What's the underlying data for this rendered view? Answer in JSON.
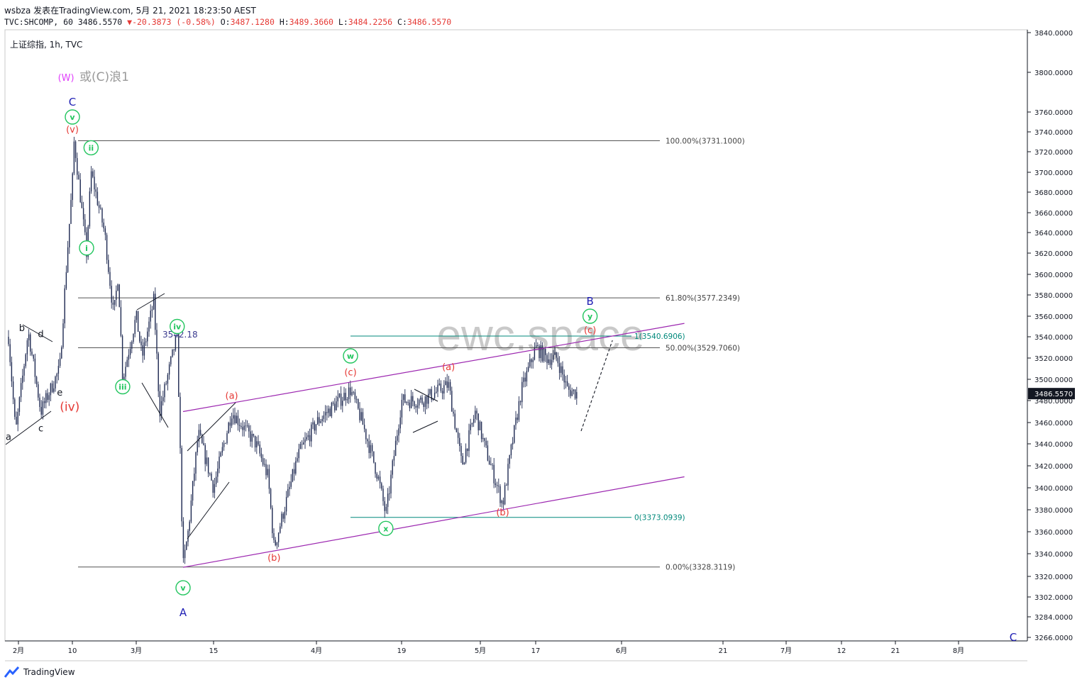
{
  "header": {
    "user_line": "wsbza 发表在TradingView.com, 5月 21, 2021 18:23:50 AEST",
    "symbol": "TVC:SHCOMP, 60",
    "last": "3486.5570",
    "change": "-20.3873 (-0.58%)",
    "o_label": "O:",
    "o_value": "3487.1280",
    "h_label": "H:",
    "h_value": "3489.3660",
    "l_label": "L:",
    "l_value": "3484.2256",
    "c_label": "C:",
    "c_value": "3486.5570"
  },
  "footer": {
    "brand": "TradingView"
  },
  "colors": {
    "candle": "#1f2a52",
    "fib": "#555555",
    "channel": "#9c27b0",
    "teal": "#00897b",
    "green": "#22c55e",
    "red": "#e53935",
    "blue": "#1e1eb4",
    "magenta": "#e040fb",
    "watermark": "#c9c9c9",
    "price_tag": "#131722"
  },
  "chart_data": {
    "type": "candlestick",
    "title": "上证综指, 1h, TVC",
    "watermark": "ewc.space",
    "y_ticks": [
      "3840.0000",
      "3800.0000",
      "3760.0000",
      "3740.0000",
      "3720.0000",
      "3700.0000",
      "3680.0000",
      "3660.0000",
      "3640.0000",
      "3620.0000",
      "3600.0000",
      "3580.0000",
      "3560.0000",
      "3540.0000",
      "3520.0000",
      "3500.0000",
      "3480.0000",
      "3460.0000",
      "3440.0000",
      "3420.0000",
      "3400.0000",
      "3380.0000",
      "3360.0000",
      "3340.0000",
      "3320.0000",
      "3302.0000",
      "3284.0000",
      "3266.0000"
    ],
    "y_tick_values": [
      3840,
      3800,
      3760,
      3740,
      3720,
      3700,
      3680,
      3660,
      3640,
      3620,
      3600,
      3580,
      3560,
      3540,
      3520,
      3500,
      3480,
      3460,
      3440,
      3420,
      3400,
      3380,
      3360,
      3340,
      3320,
      3302,
      3284,
      3266
    ],
    "x_ticks": [
      "2月",
      "10",
      "3月",
      "15",
      "4月",
      "19",
      "5月",
      "17",
      "6月",
      "21",
      "7月",
      "12",
      "21",
      "8月"
    ],
    "current_price": "3486.5570",
    "current_price_value": 3486.557,
    "price_label": "3542.18",
    "price_label_value": 3542.18,
    "swing_path": [
      {
        "date": "2021-01-29",
        "v": 3540
      },
      {
        "date": "2021-02-01",
        "v": 3450
      },
      {
        "date": "2021-02-03",
        "v": 3545
      },
      {
        "date": "2021-02-05",
        "v": 3470
      },
      {
        "date": "2021-02-08",
        "v": 3510
      },
      {
        "date": "2021-02-09",
        "v": 3603
      },
      {
        "date": "2021-02-10",
        "v": 3690
      },
      {
        "date": "2021-02-11",
        "v": 3731
      },
      {
        "date": "2021-02-18",
        "v": 3620
      },
      {
        "date": "2021-02-19",
        "v": 3700
      },
      {
        "date": "2021-02-22",
        "v": 3640
      },
      {
        "date": "2021-02-24",
        "v": 3560
      },
      {
        "date": "2021-02-25",
        "v": 3600
      },
      {
        "date": "2021-02-26",
        "v": 3500
      },
      {
        "date": "2021-03-01",
        "v": 3560
      },
      {
        "date": "2021-03-02",
        "v": 3520
      },
      {
        "date": "2021-03-04",
        "v": 3575
      },
      {
        "date": "2021-03-05",
        "v": 3470
      },
      {
        "date": "2021-03-08",
        "v": 3542
      },
      {
        "date": "2021-03-09",
        "v": 3328
      },
      {
        "date": "2021-03-10",
        "v": 3360
      },
      {
        "date": "2021-03-12",
        "v": 3450
      },
      {
        "date": "2021-03-15",
        "v": 3400
      },
      {
        "date": "2021-03-18",
        "v": 3470
      },
      {
        "date": "2021-03-22",
        "v": 3440
      },
      {
        "date": "2021-03-24",
        "v": 3410
      },
      {
        "date": "2021-03-25",
        "v": 3345
      },
      {
        "date": "2021-03-29",
        "v": 3430
      },
      {
        "date": "2021-04-01",
        "v": 3460
      },
      {
        "date": "2021-04-06",
        "v": 3490
      },
      {
        "date": "2021-04-09",
        "v": 3460
      },
      {
        "date": "2021-04-13",
        "v": 3410
      },
      {
        "date": "2021-04-15",
        "v": 3375
      },
      {
        "date": "2021-04-19",
        "v": 3480
      },
      {
        "date": "2021-04-22",
        "v": 3480
      },
      {
        "date": "2021-04-26",
        "v": 3495
      },
      {
        "date": "2021-04-28",
        "v": 3420
      },
      {
        "date": "2021-04-30",
        "v": 3470
      },
      {
        "date": "2021-05-06",
        "v": 3440
      },
      {
        "date": "2021-05-10",
        "v": 3385
      },
      {
        "date": "2021-05-12",
        "v": 3440
      },
      {
        "date": "2021-05-14",
        "v": 3490
      },
      {
        "date": "2021-05-17",
        "v": 3530
      },
      {
        "date": "2021-05-18",
        "v": 3520
      },
      {
        "date": "2021-05-19",
        "v": 3520
      },
      {
        "date": "2021-05-20",
        "v": 3490
      },
      {
        "date": "2021-05-21",
        "v": 3486.557
      }
    ],
    "fib_levels": [
      {
        "label": "100.00%(3731.1000)",
        "value": 3731.1
      },
      {
        "label": "61.80%(3577.2349)",
        "value": 3577.2349
      },
      {
        "label": "50.00%(3529.7060)",
        "value": 3529.706
      },
      {
        "label": "0.00%(3328.3119)",
        "value": 3328.3119
      }
    ],
    "fib_ext_levels": [
      {
        "label": "1(3540.6906)",
        "value": 3540.6906
      },
      {
        "label": "0(3373.0939)",
        "value": 3373.0939
      }
    ],
    "channel": {
      "upper": [
        {
          "date": "2021-03-09",
          "v": 3470
        },
        {
          "date": "2021-06-05",
          "v": 3553
        }
      ],
      "lower": [
        {
          "date": "2021-03-09",
          "v": 3328
        },
        {
          "date": "2021-06-05",
          "v": 3410
        }
      ]
    },
    "projection": {
      "from": {
        "date": "2021-05-21",
        "v": 3490
      },
      "to": {
        "date": "2021-05-25",
        "v": 3538
      }
    },
    "wave_labels": [
      {
        "text": "(W)",
        "color": "magenta",
        "date": "2021-02-09",
        "v": 3795
      },
      {
        "text": "或(C)浪1",
        "color": "gray",
        "date": "2021-02-14",
        "v": 3795
      },
      {
        "text": "C",
        "color": "blue",
        "date": "2021-02-10",
        "v": 3770
      },
      {
        "text": "v",
        "circled": true,
        "color": "green",
        "date": "2021-02-10",
        "v": 3755
      },
      {
        "text": "(v)",
        "color": "red",
        "date": "2021-02-10",
        "v": 3743
      },
      {
        "text": "ii",
        "circled": true,
        "color": "green",
        "date": "2021-02-19",
        "v": 3724
      },
      {
        "text": "i",
        "circled": true,
        "color": "green",
        "date": "2021-02-18",
        "v": 3625
      },
      {
        "text": "iii",
        "circled": true,
        "color": "green",
        "date": "2021-02-26",
        "v": 3493
      },
      {
        "text": "iv",
        "circled": true,
        "color": "green",
        "date": "2021-03-08",
        "v": 3550
      },
      {
        "text": "v",
        "circled": true,
        "color": "green",
        "date": "2021-03-09",
        "v": 3310
      },
      {
        "text": "A",
        "color": "blue",
        "date": "2021-03-09",
        "v": 3288
      },
      {
        "text": "(a)",
        "color": "red",
        "date": "2021-03-18",
        "v": 3485
      },
      {
        "text": "(b)",
        "color": "red",
        "date": "2021-03-25",
        "v": 3337
      },
      {
        "text": "(c)",
        "color": "red",
        "date": "2021-04-06",
        "v": 3507
      },
      {
        "text": "w",
        "circled": true,
        "color": "green",
        "date": "2021-04-06",
        "v": 3522
      },
      {
        "text": "x",
        "circled": true,
        "color": "green",
        "date": "2021-04-15",
        "v": 3363
      },
      {
        "text": "(a)",
        "color": "red",
        "date": "2021-04-26",
        "v": 3512
      },
      {
        "text": "(b)",
        "color": "red",
        "date": "2021-05-10",
        "v": 3378
      },
      {
        "text": "(c)",
        "color": "red",
        "date": "2021-05-24",
        "v": 3547
      },
      {
        "text": "y",
        "circled": true,
        "color": "green",
        "date": "2021-05-24",
        "v": 3560
      },
      {
        "text": "B",
        "color": "blue",
        "date": "2021-05-24",
        "v": 3574
      },
      {
        "text": "a",
        "color": "black",
        "date": "2021-01-29",
        "v": 3447
      },
      {
        "text": "b",
        "color": "black",
        "date": "2021-02-02",
        "v": 3549
      },
      {
        "text": "c",
        "color": "black",
        "date": "2021-02-05",
        "v": 3455
      },
      {
        "text": "d",
        "color": "black",
        "date": "2021-02-05",
        "v": 3543
      },
      {
        "text": "e",
        "color": "black",
        "date": "2021-02-08",
        "v": 3488
      },
      {
        "text": "(iv)",
        "color": "red",
        "date": "2021-02-08",
        "v": 3474
      },
      {
        "text": "C",
        "color": "blue",
        "date": "2021-08-12",
        "v": 3266
      }
    ]
  }
}
